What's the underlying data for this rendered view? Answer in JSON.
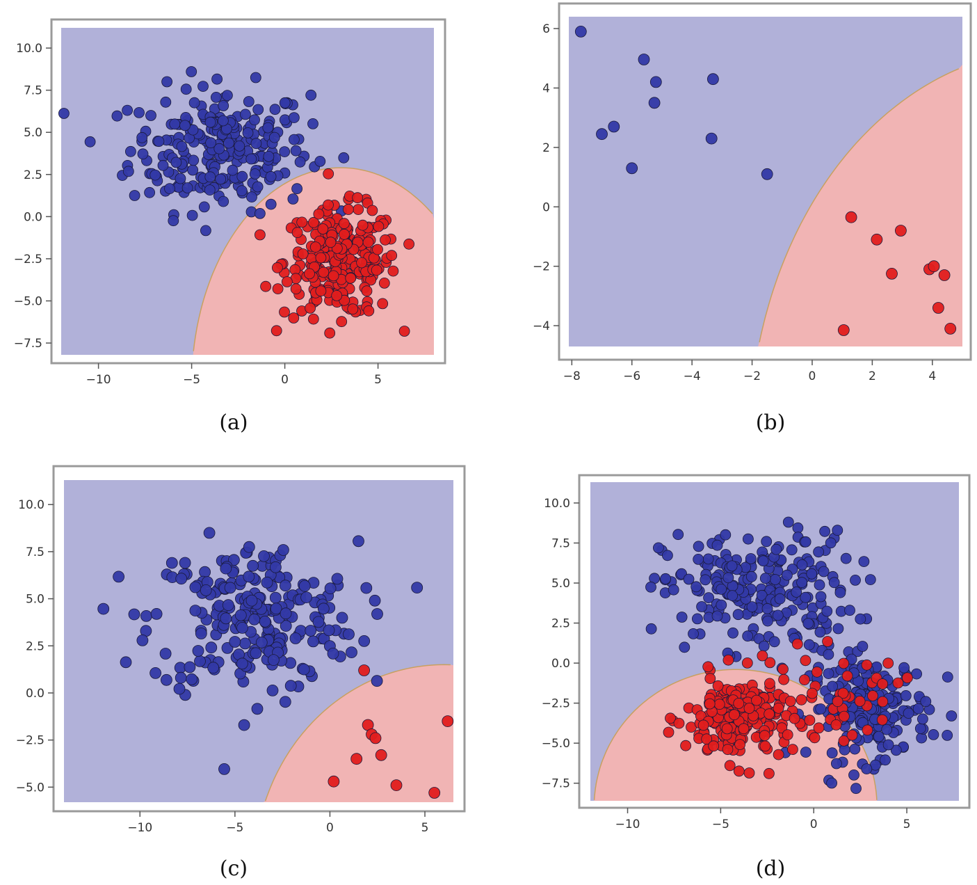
{
  "figure": {
    "colors": {
      "blue_region": "#b1b1d9",
      "red_region": "#f1b4b4",
      "blue_point": "#3339a6",
      "red_point": "#e01d1d",
      "point_edge": "#1a1a3a"
    }
  },
  "chart_data": [
    {
      "id": "a",
      "type": "scatter",
      "caption": "(a)",
      "xlim": [
        -12,
        8
      ],
      "ylim": [
        -8.2,
        11.2
      ],
      "xticks": [
        -10,
        -5,
        0,
        5
      ],
      "yticks": [
        -7.5,
        -5.0,
        -2.5,
        0.0,
        2.5,
        5.0,
        7.5,
        10.0
      ],
      "xtick_labels": [
        "−10",
        "−5",
        "0",
        "5"
      ],
      "ytick_labels": [
        "−7.5",
        "−5.0",
        "−2.5",
        "0.0",
        "2.5",
        "5.0",
        "7.5",
        "10.0"
      ],
      "regions": [
        "blue (class 0)",
        "red (class 1, elliptical region)"
      ],
      "series": [
        {
          "name": "class 0 (blue)",
          "color": "blue",
          "n_points": 250,
          "center": [
            -3.5,
            4.0
          ],
          "spread": [
            3.0,
            2.3
          ]
        },
        {
          "name": "class 1 (red)",
          "color": "red",
          "n_points": 250,
          "center": [
            3.0,
            -2.7
          ],
          "spread": [
            1.9,
            2.0
          ]
        }
      ],
      "boundary": {
        "center": [
          3.0,
          -10.0
        ],
        "radii": [
          8.0,
          12.9
        ]
      }
    },
    {
      "id": "b",
      "type": "scatter",
      "caption": "(b)",
      "xlim": [
        -8.1,
        5.0
      ],
      "ylim": [
        -4.7,
        6.4
      ],
      "xticks": [
        -8,
        -6,
        -4,
        -2,
        0,
        2,
        4
      ],
      "yticks": [
        -4,
        -2,
        0,
        2,
        4,
        6
      ],
      "xtick_labels": [
        "−8",
        "−6",
        "−4",
        "−2",
        "0",
        "2",
        "4"
      ],
      "ytick_labels": [
        "−4",
        "−2",
        "0",
        "2",
        "4",
        "6"
      ],
      "series": [
        {
          "name": "class 0 (blue)",
          "color": "blue",
          "points": [
            [
              -7.7,
              5.9
            ],
            [
              -5.6,
              4.96
            ],
            [
              -5.2,
              4.2
            ],
            [
              -5.25,
              3.5
            ],
            [
              -3.3,
              4.3
            ],
            [
              -7.0,
              2.45
            ],
            [
              -6.6,
              2.7
            ],
            [
              -6.0,
              1.3
            ],
            [
              -3.35,
              2.3
            ],
            [
              -1.5,
              1.1
            ]
          ]
        },
        {
          "name": "class 1 (red)",
          "color": "red",
          "points": [
            [
              1.3,
              -0.35
            ],
            [
              2.15,
              -1.1
            ],
            [
              2.95,
              -0.8
            ],
            [
              2.65,
              -2.25
            ],
            [
              3.9,
              -2.1
            ],
            [
              4.05,
              -2.0
            ],
            [
              4.4,
              -2.3
            ],
            [
              4.2,
              -3.4
            ],
            [
              4.6,
              -4.1
            ],
            [
              1.05,
              -4.15
            ]
          ]
        }
      ],
      "boundary": {
        "center": [
          8.0,
          -8.0
        ],
        "radii": [
          10.1,
          13.3
        ]
      }
    },
    {
      "id": "c",
      "type": "scatter",
      "caption": "(c)",
      "xlim": [
        -14,
        6.5
      ],
      "ylim": [
        -5.8,
        11.3
      ],
      "xticks": [
        -10,
        -5,
        0,
        5
      ],
      "yticks": [
        -5.0,
        -2.5,
        0.0,
        2.5,
        5.0,
        7.5,
        10.0
      ],
      "xtick_labels": [
        "−10",
        "−5",
        "0",
        "5"
      ],
      "ytick_labels": [
        "−5.0",
        "−2.5",
        "0.0",
        "2.5",
        "5.0",
        "7.5",
        "10.0"
      ],
      "series": [
        {
          "name": "class 0 (blue)",
          "color": "blue",
          "n_points": 240,
          "center": [
            -4.0,
            4.0
          ],
          "spread": [
            3.4,
            2.5
          ]
        },
        {
          "name": "class 1 (red)",
          "color": "red",
          "points": [
            [
              2.0,
              -1.7
            ],
            [
              2.2,
              -2.2
            ],
            [
              2.4,
              -2.4
            ],
            [
              1.4,
              -3.5
            ],
            [
              2.7,
              -3.3
            ],
            [
              0.2,
              -4.7
            ],
            [
              3.5,
              -4.9
            ],
            [
              5.5,
              -5.3
            ],
            [
              6.2,
              -1.5
            ],
            [
              1.8,
              1.2
            ]
          ]
        }
      ],
      "boundary": {
        "center": [
          6.0,
          -9.5
        ],
        "radii": [
          10.0,
          11.0
        ]
      }
    },
    {
      "id": "d",
      "type": "scatter",
      "caption": "(d)",
      "xlim": [
        -12,
        7.8
      ],
      "ylim": [
        -8.6,
        11.3
      ],
      "xticks": [
        -10,
        -5,
        0,
        5
      ],
      "yticks": [
        -7.5,
        -5.0,
        -2.5,
        0.0,
        2.5,
        5.0,
        7.5,
        10.0
      ],
      "xtick_labels": [
        "−10",
        "−5",
        "0",
        "5"
      ],
      "ytick_labels": [
        "−7.5",
        "−5.0",
        "−2.5",
        "0.0",
        "2.5",
        "5.0",
        "7.5",
        "10.0"
      ],
      "series": [
        {
          "name": "class 0 (blue, upper-left cluster)",
          "color": "blue",
          "n_points": 230,
          "center": [
            -3.0,
            4.5
          ],
          "spread": [
            3.2,
            2.3
          ]
        },
        {
          "name": "class 0 (blue, right cluster)",
          "color": "blue",
          "n_points": 200,
          "center": [
            3.0,
            -2.8
          ],
          "spread": [
            2.0,
            2.0
          ]
        },
        {
          "name": "class 1 (red)",
          "color": "red",
          "n_points": 200,
          "center": [
            -4.0,
            -3.5
          ],
          "spread": [
            1.8,
            1.7
          ]
        },
        {
          "name": "class 1 (red, scattered)",
          "color": "red",
          "n_points": 40,
          "center": [
            1.5,
            -2.0
          ],
          "spread": [
            2.0,
            1.6
          ]
        }
      ],
      "boundary": {
        "center": [
          -4.2,
          -9.0
        ],
        "radii": [
          7.6,
          8.6
        ]
      }
    }
  ]
}
